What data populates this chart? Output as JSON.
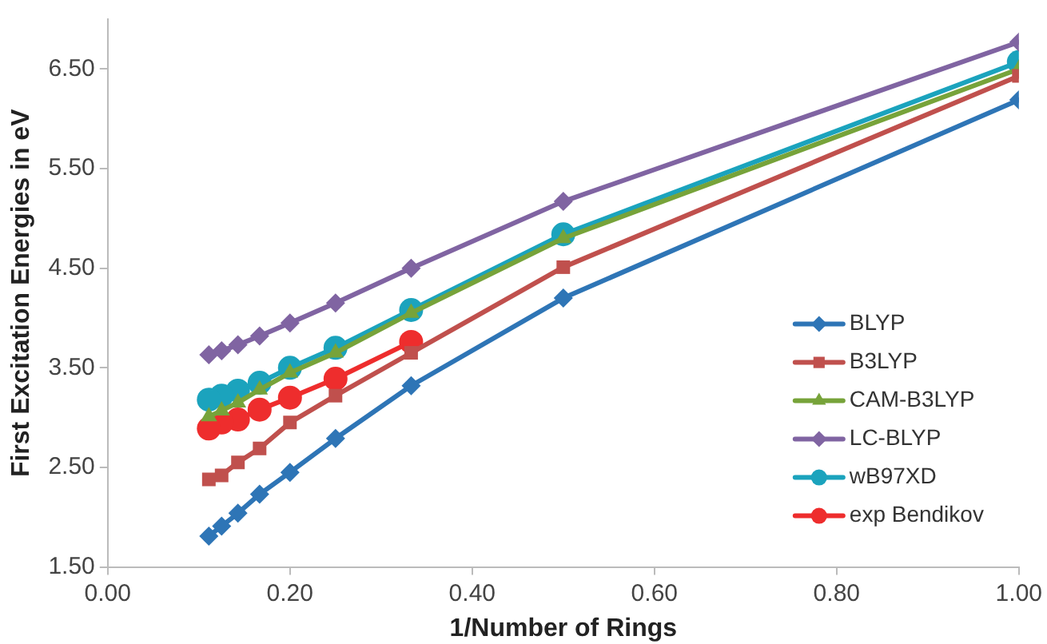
{
  "chart_data": {
    "type": "line",
    "xlabel": "1/Number of Rings",
    "ylabel": "First Excitation Energies in eV",
    "x": [
      1,
      0.5,
      0.333,
      0.25,
      0.2,
      0.1667,
      0.1429,
      0.125,
      0.111
    ],
    "xlim": [
      0,
      1
    ],
    "xticks": [
      {
        "value": 0,
        "label": "0.00"
      },
      {
        "value": 0.2,
        "label": "0.20"
      },
      {
        "value": 0.4,
        "label": "0.40"
      },
      {
        "value": 0.6,
        "label": "0.60"
      },
      {
        "value": 0.8,
        "label": "0.80"
      },
      {
        "value": 1,
        "label": "1.00"
      }
    ],
    "ylim": [
      1.5,
      7
    ],
    "yticks": [
      {
        "value": 1.5,
        "label": "1.50"
      },
      {
        "value": 2.5,
        "label": "2.50"
      },
      {
        "value": 3.5,
        "label": "3.50"
      },
      {
        "value": 4.5,
        "label": "4.50"
      },
      {
        "value": 5.5,
        "label": "5.50"
      },
      {
        "value": 6.5,
        "label": "6.50"
      }
    ],
    "grid": false,
    "legend": "right",
    "line_style": "solid",
    "series": [
      {
        "name": "BLYP",
        "color": "#2e75b6",
        "marker": "diamond",
        "values": [
          6.19,
          4.2,
          3.32,
          2.79,
          2.45,
          2.23,
          2.04,
          1.91,
          1.81
        ]
      },
      {
        "name": "B3LYP",
        "color": "#c0504d",
        "marker": "square",
        "values": [
          6.43,
          4.51,
          3.65,
          3.22,
          2.95,
          2.69,
          2.55,
          2.42,
          2.38
        ]
      },
      {
        "name": "CAM-B3LYP",
        "color": "#77a33a",
        "marker": "triangle",
        "values": [
          6.5,
          4.8,
          4.05,
          3.65,
          3.45,
          3.28,
          3.15,
          3.07,
          3.01
        ]
      },
      {
        "name": "LC-BLYP",
        "color": "#8064a2",
        "marker": "diamond",
        "values": [
          6.77,
          5.17,
          4.5,
          4.15,
          3.95,
          3.82,
          3.73,
          3.67,
          3.63
        ]
      },
      {
        "name": "wB97XD",
        "color": "#1ba3bd",
        "marker": "circle",
        "values": [
          6.57,
          4.84,
          4.08,
          3.7,
          3.5,
          3.35,
          3.27,
          3.22,
          3.18
        ]
      },
      {
        "name": "exp Bendikov",
        "color": "#ee2d2d",
        "marker": "circle",
        "values": [
          null,
          null,
          3.76,
          3.39,
          3.2,
          3.08,
          2.98,
          2.95,
          2.89
        ]
      }
    ]
  }
}
